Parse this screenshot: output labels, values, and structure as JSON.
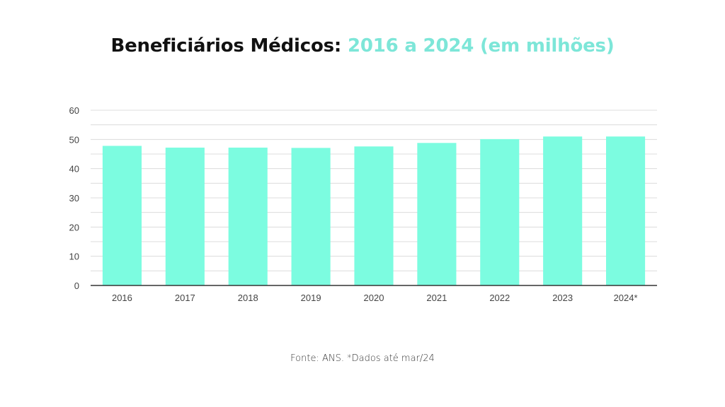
{
  "header": {
    "title_main": "Beneficiários Médicos:",
    "title_accent": "2016 a 2024 (em milhões)"
  },
  "footer": {
    "source": "Fonte: ANS. *Dados até mar/24"
  },
  "colors": {
    "bar": "#7cfce0",
    "accent": "#7de6d8",
    "grid": "#dcdcdc",
    "axis": "#333333",
    "tick": "#444444"
  },
  "chart_data": {
    "type": "bar",
    "title": "Beneficiários Médicos: 2016 a 2024 (em milhões)",
    "categories": [
      "2016",
      "2017",
      "2018",
      "2019",
      "2020",
      "2021",
      "2022",
      "2023",
      "2024*"
    ],
    "values": [
      47.8,
      47.2,
      47.2,
      47.1,
      47.6,
      48.8,
      50.1,
      51.0,
      51.0
    ],
    "ylim": [
      0,
      60
    ],
    "yticks": [
      0,
      10,
      20,
      30,
      40,
      50,
      60
    ],
    "grid": true,
    "legend": "none"
  }
}
